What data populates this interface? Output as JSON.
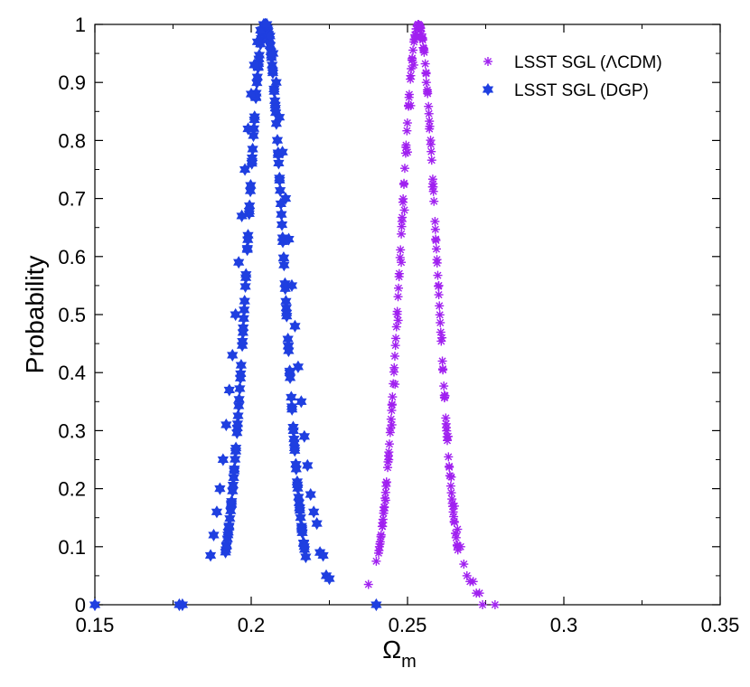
{
  "chart_data": {
    "type": "scatter",
    "xlabel": "Ω",
    "xlabel_sub": "m",
    "ylabel": "Probability",
    "xlim": [
      0.15,
      0.35
    ],
    "ylim": [
      0,
      1
    ],
    "xticks": [
      "0.15",
      "0.2",
      "0.25",
      "0.3",
      "0.35"
    ],
    "yticks": [
      "0",
      "0.1",
      "0.2",
      "0.3",
      "0.4",
      "0.5",
      "0.6",
      "0.7",
      "0.8",
      "0.9",
      "1"
    ],
    "legend_position": "top-right",
    "grid": false,
    "series": [
      {
        "name": "LSST SGL (ΛCDM)",
        "color": "#a020f0",
        "marker": "asterisk",
        "mean": 0.2535,
        "sigma": 0.0058,
        "x": [
          0.2375,
          0.24,
          0.241,
          0.242,
          0.243,
          0.244,
          0.245,
          0.246,
          0.247,
          0.248,
          0.249,
          0.25,
          0.251,
          0.252,
          0.253,
          0.2535,
          0.254,
          0.255,
          0.256,
          0.257,
          0.258,
          0.259,
          0.26,
          0.261,
          0.262,
          0.263,
          0.264,
          0.265,
          0.266,
          0.267,
          0.268,
          0.269,
          0.27,
          0.271,
          0.272,
          0.273,
          0.274,
          0.278
        ],
        "y": [
          0.035,
          0.075,
          0.1,
          0.135,
          0.18,
          0.25,
          0.31,
          0.38,
          0.49,
          0.59,
          0.68,
          0.78,
          0.86,
          0.93,
          0.98,
          1.0,
          0.99,
          0.96,
          0.9,
          0.82,
          0.72,
          0.63,
          0.55,
          0.46,
          0.36,
          0.29,
          0.22,
          0.17,
          0.13,
          0.1,
          0.07,
          0.05,
          0.04,
          0.04,
          0.02,
          0.02,
          0.0,
          0.0
        ]
      },
      {
        "name": "LSST SGL (DGP)",
        "color": "#1f3fe0",
        "marker": "hexagram",
        "mean": 0.2045,
        "sigma": 0.0058,
        "x": [
          0.15,
          0.177,
          0.178,
          0.187,
          0.188,
          0.189,
          0.19,
          0.191,
          0.192,
          0.193,
          0.194,
          0.195,
          0.196,
          0.197,
          0.198,
          0.199,
          0.2,
          0.201,
          0.202,
          0.203,
          0.204,
          0.2045,
          0.205,
          0.206,
          0.207,
          0.208,
          0.209,
          0.21,
          0.211,
          0.212,
          0.213,
          0.214,
          0.215,
          0.216,
          0.217,
          0.218,
          0.219,
          0.22,
          0.221,
          0.222,
          0.223,
          0.224,
          0.225,
          0.24
        ],
        "y": [
          0.0,
          0.0,
          0.0,
          0.085,
          0.12,
          0.16,
          0.2,
          0.25,
          0.31,
          0.37,
          0.43,
          0.5,
          0.59,
          0.67,
          0.75,
          0.82,
          0.88,
          0.93,
          0.97,
          0.99,
          1.0,
          1.0,
          1.0,
          0.98,
          0.95,
          0.9,
          0.84,
          0.78,
          0.7,
          0.63,
          0.55,
          0.48,
          0.41,
          0.35,
          0.29,
          0.24,
          0.19,
          0.16,
          0.14,
          0.09,
          0.085,
          0.05,
          0.045,
          0.0
        ]
      }
    ]
  }
}
